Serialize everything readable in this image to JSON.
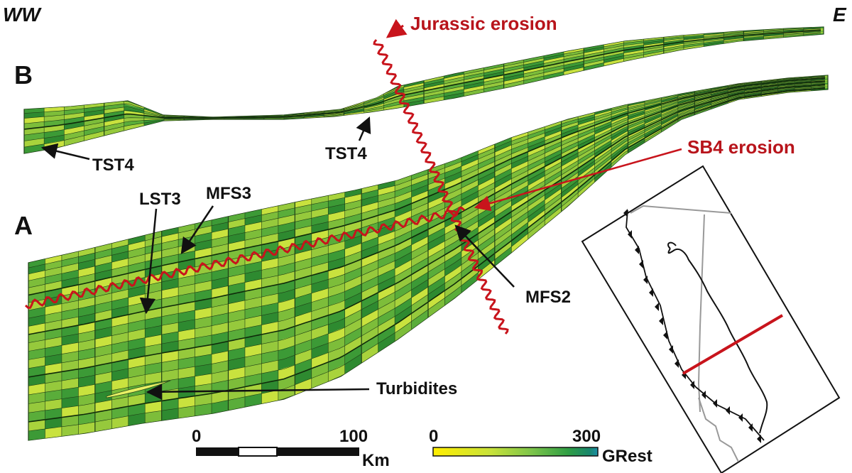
{
  "orientation": {
    "west": "WW",
    "east": "E"
  },
  "panels": {
    "upper": "B",
    "lower": "A"
  },
  "annotations": {
    "jurassic_erosion": "Jurassic erosion",
    "sb4_erosion": "SB4 erosion",
    "tst4_west": "TST4",
    "tst4_east": "TST4",
    "lst3": "LST3",
    "mfs3": "MFS3",
    "mfs2": "MFS2",
    "turbidites": "Turbidites"
  },
  "scale_bar": {
    "min": "0",
    "max": "100",
    "unit": "Km"
  },
  "color_bar": {
    "min": "0",
    "max": "300",
    "unit": "GRest",
    "colors": [
      "#ffee00",
      "#c8e23a",
      "#7cc44a",
      "#2f9e44",
      "#19866c",
      "#1b8fa8"
    ]
  },
  "colors": {
    "erosion": "#c8141c",
    "arrow": "#111111",
    "light_fill": "#c6df3a",
    "dark_fill": "#3a9a3a"
  }
}
